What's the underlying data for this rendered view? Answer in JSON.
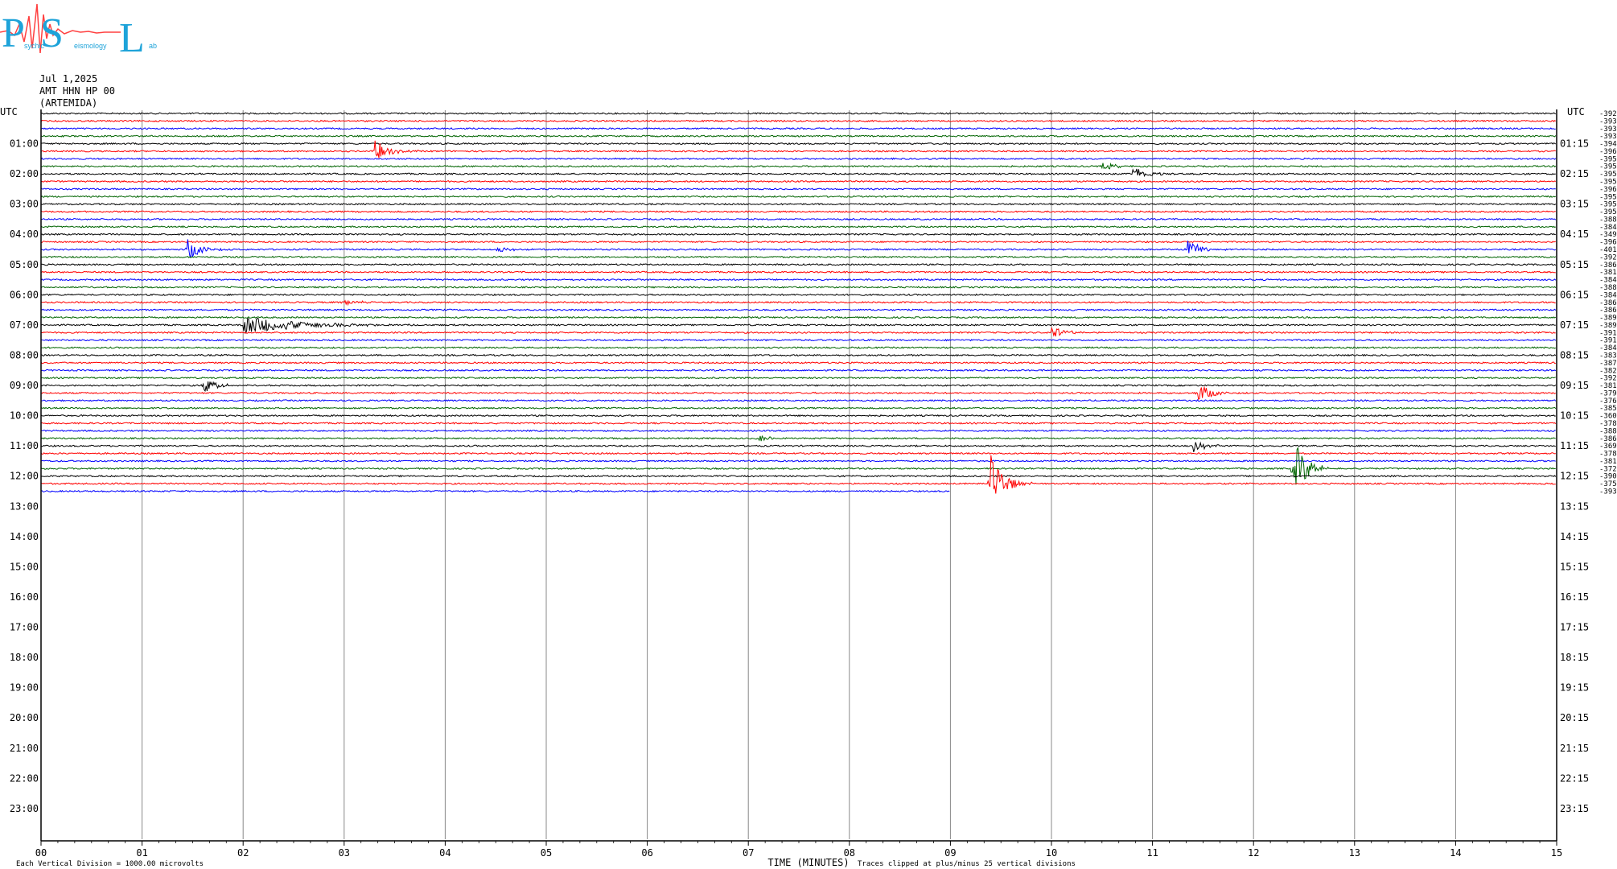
{
  "header": {
    "logo_letters": [
      "P",
      "S",
      "L"
    ],
    "logo_small_text": [
      "sychic",
      "eismology",
      "ab"
    ],
    "date": "Jul 1,2025",
    "channel": "AMT HHN HP 00",
    "station": "(ARTEMIDA)"
  },
  "chart_data": {
    "type": "line",
    "title": "",
    "x_axis": {
      "label": "TIME (MINUTES)",
      "range": [
        0,
        15
      ],
      "ticks": [
        "00",
        "01",
        "02",
        "03",
        "04",
        "05",
        "06",
        "07",
        "08",
        "09",
        "10",
        "11",
        "12",
        "13",
        "14",
        "15"
      ]
    },
    "left_axis": {
      "label": "UTC",
      "ticks": [
        "01:00",
        "02:00",
        "03:00",
        "04:00",
        "05:00",
        "06:00",
        "07:00",
        "08:00",
        "09:00",
        "10:00",
        "11:00",
        "12:00",
        "13:00",
        "14:00",
        "15:00",
        "16:00",
        "17:00",
        "18:00",
        "19:00",
        "20:00",
        "21:00",
        "22:00",
        "23:00"
      ]
    },
    "right_axis": {
      "label": "UTC",
      "ticks": [
        "01:15",
        "02:15",
        "03:15",
        "04:15",
        "05:15",
        "06:15",
        "07:15",
        "08:15",
        "09:15",
        "10:15",
        "11:15",
        "12:15",
        "13:15",
        "14:15",
        "15:15",
        "16:15",
        "17:15",
        "18:15",
        "19:15",
        "20:15",
        "21:15",
        "22:15",
        "23:15"
      ]
    },
    "trace_colors": [
      "#000000",
      "#ff0000",
      "#0000ff",
      "#006400"
    ],
    "minutes_per_trace": 15,
    "hours_covered": 24,
    "last_trace_end_minute": 9,
    "trace_offsets": [
      "-3926",
      "-3931",
      "-3939",
      "-3938",
      "-3941",
      "-3960",
      "-3958",
      "-3950",
      "-3959",
      "-3955",
      "-3960",
      "-3950",
      "-3954",
      "-3952",
      "-3881",
      "-3842",
      "-3496",
      "-3965",
      "-4013",
      "-3927",
      "-3865",
      "-3819",
      "-3844",
      "-3880",
      "-3848",
      "-3869",
      "-3867",
      "-3891",
      "-3890",
      "-3916",
      "-3918",
      "-3845",
      "-3835",
      "-3874",
      "-3823",
      "-3924",
      "-3811",
      "-3796",
      "-3762",
      "-3857",
      "-3608",
      "-3784",
      "-3881",
      "-3860",
      "-3693",
      "-3781",
      "-3816",
      "-3720",
      "-3908",
      "-3754",
      "-3938"
    ],
    "events": [
      {
        "trace": 5,
        "minute": 3.3,
        "amplitude": 1.6
      },
      {
        "trace": 7,
        "minute": 10.5,
        "amplitude": 0.6
      },
      {
        "trace": 8,
        "minute": 10.8,
        "amplitude": 1.3
      },
      {
        "trace": 18,
        "minute": 1.45,
        "amplitude": 1.5
      },
      {
        "trace": 18,
        "minute": 4.5,
        "amplitude": 0.5
      },
      {
        "trace": 18,
        "minute": 11.35,
        "amplitude": 1.3
      },
      {
        "trace": 25,
        "minute": 3.0,
        "amplitude": 0.5
      },
      {
        "trace": 28,
        "minute": 2.0,
        "amplitude": 1.3,
        "duration": 1.9
      },
      {
        "trace": 29,
        "minute": 10.0,
        "amplitude": 1.0
      },
      {
        "trace": 36,
        "minute": 1.6,
        "amplitude": 1.2
      },
      {
        "trace": 37,
        "minute": 11.45,
        "amplitude": 1.4
      },
      {
        "trace": 43,
        "minute": 7.1,
        "amplitude": 0.5
      },
      {
        "trace": 44,
        "minute": 11.4,
        "amplitude": 0.8
      },
      {
        "trace": 47,
        "minute": 12.4,
        "amplitude": 4.0
      },
      {
        "trace": 49,
        "minute": 9.4,
        "amplitude": 4.2
      }
    ]
  },
  "footer": {
    "left_note": "Each Vertical Division = 1000.00 microvolts",
    "right_note": "Traces clipped at plus/minus 25 vertical divisions"
  }
}
